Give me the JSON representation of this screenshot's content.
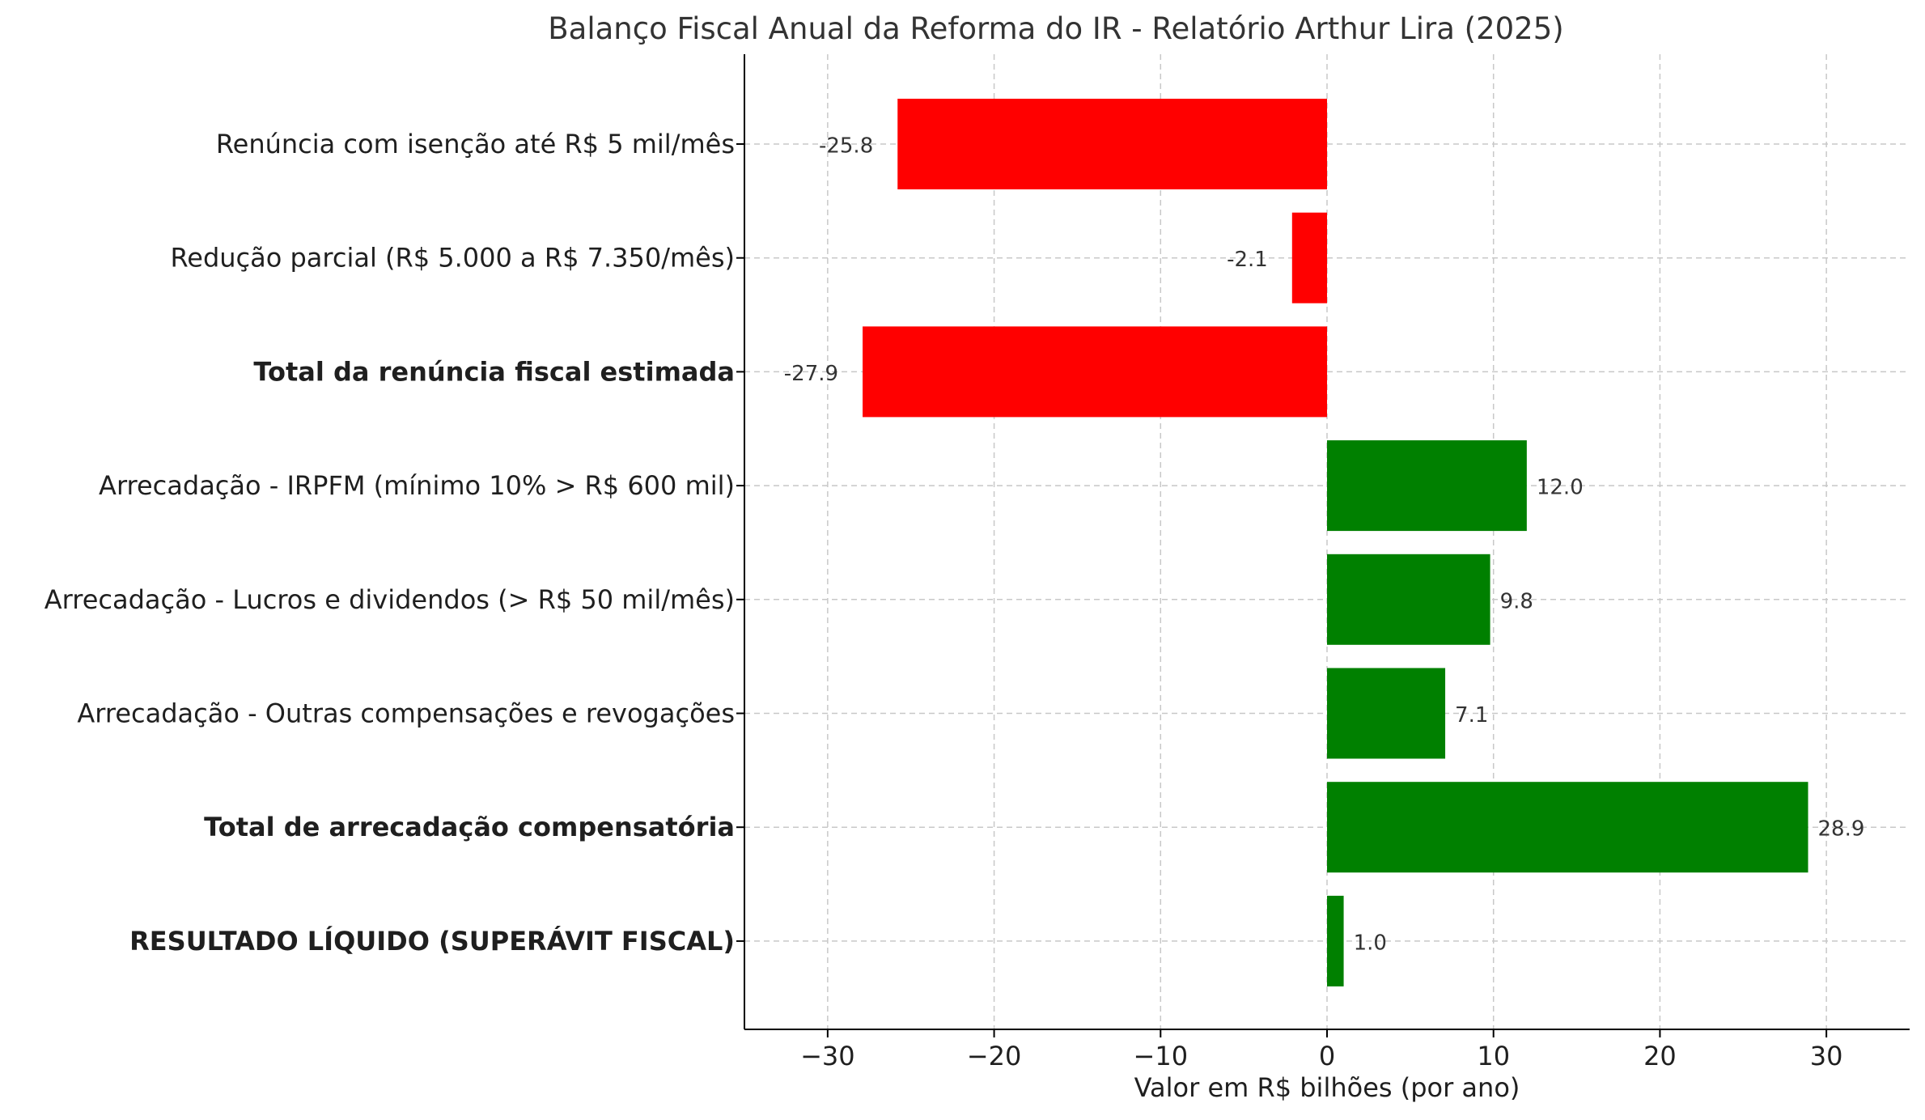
{
  "chart_data": {
    "type": "bar",
    "orientation": "horizontal",
    "title": "Balanço Fiscal Anual da Reforma do IR - Relatório Arthur Lira (2025)",
    "xlabel": "Valor em R$ bilhões (por ano)",
    "ylabel": "",
    "xlim": [
      -35,
      35
    ],
    "xticks": [
      -30,
      -20,
      -10,
      0,
      10,
      20,
      30
    ],
    "xtick_labels": [
      "−30",
      "−20",
      "−10",
      "0",
      "10",
      "20",
      "30"
    ],
    "grid": true,
    "colors": {
      "negative": "#ff0000",
      "positive": "#008000"
    },
    "categories": [
      "Renúncia com isenção até R$ 5 mil/mês",
      "Redução parcial (R$ 5.000 a R$ 7.350/mês)",
      "Total da renúncia fiscal estimada",
      "Arrecadação - IRPFM (mínimo 10% > R$ 600 mil)",
      "Arrecadação - Lucros e dividendos (> R$ 50 mil/mês)",
      "Arrecadação - Outras compensações e revogações",
      "Total de arrecadação compensatória",
      "RESULTADO LÍQUIDO (SUPERÁVIT FISCAL)"
    ],
    "bold_categories": [
      false,
      false,
      true,
      false,
      false,
      false,
      true,
      true
    ],
    "values": [
      -25.8,
      -2.1,
      -27.9,
      12.0,
      9.8,
      7.1,
      28.9,
      1.0
    ],
    "value_labels": [
      "-25.8",
      "-2.1",
      "-27.9",
      "12.0",
      "9.8",
      "7.1",
      "28.9",
      "1.0"
    ]
  }
}
